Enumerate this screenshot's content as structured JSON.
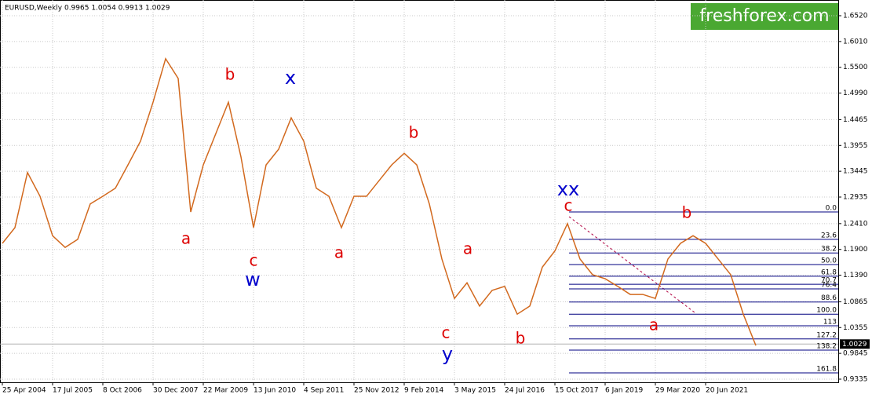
{
  "chart_data": {
    "type": "line",
    "title": "EURUSD,Weekly  0.9965 1.0054 0.9913 1.0029",
    "watermark": "freshforex.com",
    "categories": [
      "25 Apr 2004",
      null,
      null,
      null,
      "17 Jul 2005",
      null,
      null,
      null,
      "8 Oct 2006",
      null,
      null,
      null,
      "30 Dec 2007",
      null,
      null,
      null,
      "22 Mar 2009",
      null,
      null,
      null,
      "13 Jun 2010",
      null,
      null,
      null,
      "4 Sep 2011",
      null,
      null,
      null,
      "25 Nov 2012",
      null,
      null,
      null,
      "9 Feb 2014",
      null,
      null,
      null,
      "3 May 2015",
      null,
      null,
      null,
      "24 Jul 2016",
      null,
      null,
      null,
      "15 Oct 2017",
      null,
      null,
      null,
      "6 Jan 2019",
      null,
      null,
      null,
      "29 Mar 2020",
      null,
      null,
      null,
      "20 Jun 2021",
      null,
      null,
      null,
      null,
      null,
      null,
      null,
      null,
      null,
      null
    ],
    "series": [
      {
        "name": "EURUSD",
        "color": "#d2691e",
        "values": [
          1.202,
          1.233,
          1.342,
          1.295,
          1.217,
          1.194,
          1.21,
          1.28,
          1.295,
          1.311,
          1.357,
          1.404,
          1.481,
          1.567,
          1.528,
          1.264,
          1.357,
          1.419,
          1.481,
          1.373,
          1.233,
          1.357,
          1.388,
          1.45,
          1.404,
          1.311,
          1.295,
          1.233,
          1.295,
          1.295,
          1.326,
          1.357,
          1.38,
          1.357,
          1.28,
          1.171,
          1.093,
          1.124,
          1.078,
          1.109,
          1.117,
          1.062,
          1.078,
          1.155,
          1.187,
          1.241,
          1.171,
          1.14,
          1.132,
          1.117,
          1.101,
          1.101,
          1.093,
          1.171,
          1.202,
          1.217,
          1.202,
          1.171,
          1.14,
          1.062,
          1.0,
          null,
          null,
          null,
          null,
          null,
          null
        ]
      }
    ],
    "ylim": [
      0.9335,
      1.652
    ],
    "yticks": [
      {
        "value": 0.9335,
        "label": "0.9335"
      },
      {
        "value": 0.9845,
        "label": "0.9845"
      },
      {
        "value": 1.0355,
        "label": "1.0355"
      },
      {
        "value": 1.0865,
        "label": "1.0865"
      },
      {
        "value": 1.139,
        "label": "1.1390"
      },
      {
        "value": 1.19,
        "label": "1.1900"
      },
      {
        "value": 1.241,
        "label": "1.2410"
      },
      {
        "value": 1.2935,
        "label": "1.2935"
      },
      {
        "value": 1.3445,
        "label": "1.3445"
      },
      {
        "value": 1.3955,
        "label": "1.3955"
      },
      {
        "value": 1.4465,
        "label": "1.4465"
      },
      {
        "value": 1.499,
        "label": "1.4990"
      },
      {
        "value": 1.55,
        "label": "1.5500"
      },
      {
        "value": 1.601,
        "label": "1.6010"
      },
      {
        "value": 1.652,
        "label": "1.6520"
      }
    ],
    "grid": true,
    "last_price": {
      "value": 1.0029,
      "label": "1.0029"
    },
    "fib_levels": [
      {
        "level": {
          "value": 0,
          "label": "0.0"
        },
        "price": 1.264
      },
      {
        "level": 23.6,
        "price": 1.21
      },
      {
        "level": 38.2,
        "price": 1.183
      },
      {
        "level": {
          "value": 50,
          "label": "50.0"
        },
        "price": 1.16
      },
      {
        "level": 61.8,
        "price": 1.137
      },
      {
        "level": 70.7,
        "price": 1.121
      },
      {
        "level": 76.4,
        "price": 1.112
      },
      {
        "level": 88.6,
        "price": 1.086
      },
      {
        "level": {
          "value": 100,
          "label": "100.0"
        },
        "price": 1.062
      },
      {
        "level": 113,
        "price": 1.039
      },
      {
        "level": 127.2,
        "price": 1.013
      },
      {
        "level": 138.2,
        "price": 0.991
      },
      {
        "level": 161.8,
        "price": 0.946
      }
    ],
    "annotations": [
      {
        "text": "a",
        "color": "#dd0000"
      },
      {
        "text": "b",
        "color": "#dd0000"
      },
      {
        "text": "c",
        "color": "#dd0000"
      },
      {
        "text": "w",
        "color": "#0000cc"
      },
      {
        "text": "x",
        "color": "#0000cc"
      },
      {
        "text": "a",
        "color": "#dd0000"
      },
      {
        "text": "b",
        "color": "#dd0000"
      },
      {
        "text": "a",
        "color": "#dd0000"
      },
      {
        "text": "c",
        "color": "#dd0000"
      },
      {
        "text": "y",
        "color": "#0000cc"
      },
      {
        "text": "b",
        "color": "#dd0000"
      },
      {
        "text": "xx",
        "color": "#0000cc"
      },
      {
        "text": "c",
        "color": "#dd0000"
      },
      {
        "text": "b",
        "color": "#dd0000"
      },
      {
        "text": "a",
        "color": "#dd0000"
      }
    ]
  }
}
